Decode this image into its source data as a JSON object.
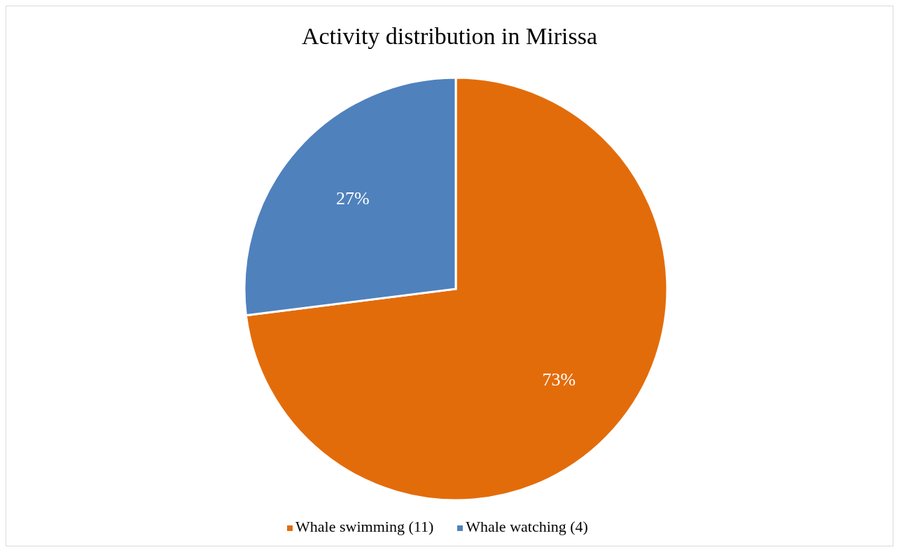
{
  "chart_data": {
    "type": "pie",
    "title": "Activity distribution in Mirissa",
    "categories": [
      "Whale swimming (11)",
      "Whale watching (4)"
    ],
    "values": [
      73,
      27
    ],
    "colors": [
      "#e36c0a",
      "#4f81bd"
    ],
    "value_labels": [
      "73%",
      "27%"
    ],
    "legend": "bottom"
  }
}
